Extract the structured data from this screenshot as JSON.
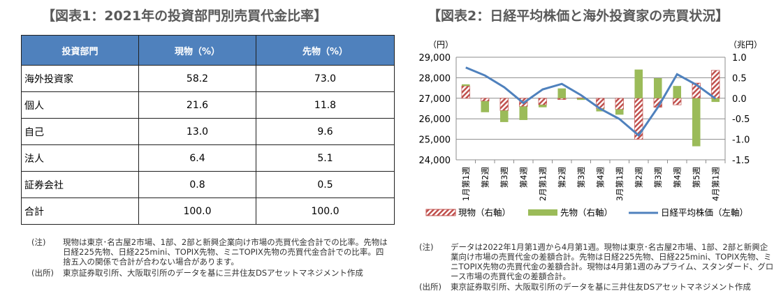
{
  "table": {
    "title": "【図表1：2021年の投資部門別売買代金比率】",
    "headers": [
      "投資部門",
      "現物（%）",
      "先物（%）"
    ],
    "rows": [
      [
        "海外投資家",
        "58.2",
        "73.0"
      ],
      [
        "個人",
        "21.6",
        "11.8"
      ],
      [
        "自己",
        "13.0",
        "9.6"
      ],
      [
        "法人",
        "6.4",
        "5.1"
      ],
      [
        "証券会社",
        "0.8",
        "0.5"
      ],
      [
        "合計",
        "100.0",
        "100.0"
      ]
    ],
    "note_label": "(注)",
    "note": "現物は東京･名古屋2市場、1部、2部と新興企業向け市場の売買代金合計での比率。先物は日経225先物、日経225mini、TOPIX先物、ミニTOPIX先物の売買代金合計での比率。四捨五入の関係で合計が合わない場合があります。",
    "source_label": "(出所)",
    "source": "東京証券取引所、大阪取引所のデータを基に三井住友DSアセットマネジメント作成"
  },
  "chart_data": {
    "type": "bar",
    "title": "【図表2：日経平均株価と海外投資家の売買状況】",
    "categories": [
      "1月第1週",
      "第2週",
      "第3週",
      "第4週",
      "2月第1週",
      "第2週",
      "第3週",
      "第4週",
      "3月第1週",
      "第2週",
      "第3週",
      "第4週",
      "第5週",
      "4月第1週"
    ],
    "left_unit": "（円）",
    "right_unit": "（兆円）",
    "left_ylim": [
      24000,
      29000
    ],
    "right_ylim": [
      -1.5,
      1.0
    ],
    "left_ticks": [
      "24,000",
      "25,000",
      "26,000",
      "27,000",
      "28,000",
      "29,000"
    ],
    "right_ticks": [
      "-1.5",
      "-1.0",
      "-0.5",
      "0.0",
      "0.5",
      "1.0"
    ],
    "series": [
      {
        "name": "現物（右軸）",
        "type": "stacked-bar",
        "axis": "right",
        "color": "#c0504d",
        "values": [
          0.3,
          -0.07,
          -0.3,
          -0.2,
          -0.16,
          -0.03,
          0.01,
          -0.25,
          -0.27,
          -1.0,
          -0.22,
          -0.16,
          0.37,
          0.68
        ]
      },
      {
        "name": "先物（右軸）",
        "type": "stacked-bar",
        "axis": "right",
        "color": "#9bbb59",
        "values": [
          0.04,
          -0.27,
          -0.28,
          -0.33,
          -0.06,
          0.24,
          -0.04,
          -0.07,
          -0.13,
          0.7,
          0.49,
          0.3,
          -1.17,
          -0.09
        ]
      },
      {
        "name": "日経平均株価（左軸）",
        "type": "line",
        "axis": "left",
        "color": "#4f81bd",
        "values": [
          28500,
          28110,
          27540,
          26770,
          27430,
          27700,
          27150,
          26490,
          25990,
          25190,
          26560,
          28170,
          27660,
          26980
        ]
      }
    ],
    "note_label": "(注)",
    "note": "データは2022年1月第1週から4月第1週。現物は東京･名古屋2市場、1部、2部と新興企業向け市場の売買代金の差額合計。先物は日経225先物、日経225mini、TOPIX先物、ミニTOPIX先物の売買代金の差額合計。現物は4月第1週のみプライム、スタンダード、グロース市場の売買代金の差額合計。",
    "source_label": "(出所)",
    "source": "東京証券取引所、大阪取引所のデータを基に三井住友DSアセットマネジメント作成"
  }
}
